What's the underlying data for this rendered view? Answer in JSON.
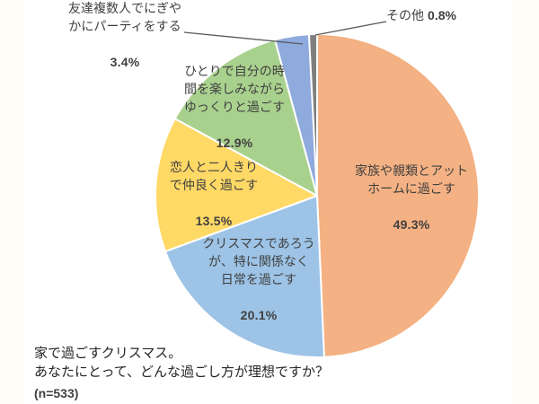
{
  "chart_data": {
    "type": "pie",
    "title": "家で過ごすクリスマス。あなたにとって、どんな過ごし方が理想ですか？",
    "n": 533,
    "start_angle_deg": 0,
    "direction": "clockwise",
    "legend_position": "none",
    "slices": [
      {
        "label": "家族や親類とアットホームに過ごす",
        "value": 49.3,
        "color": "#F4B183"
      },
      {
        "label": "クリスマスであろうが、特に関係なく日常を過ごす",
        "value": 20.1,
        "color": "#9DC3E6"
      },
      {
        "label": "恋人と二人きりで仲良く過ごす",
        "value": 13.5,
        "color": "#FFD966"
      },
      {
        "label": "ひとりで自分の時間を楽しみながらゆっくりと過ごす",
        "value": 12.9,
        "color": "#A9D18E"
      },
      {
        "label": "友達複数人でにぎやかにパーティをする",
        "value": 3.4,
        "color": "#8FAADC"
      },
      {
        "label": "その他",
        "value": 0.8,
        "color": "#7F7F7F"
      }
    ],
    "slice_border_color": "#FFFFFF",
    "label_text_color": "#404040",
    "leader_line_color": "#595959"
  },
  "labels": {
    "family": {
      "text": "家族や親類とアット\nホームに過ごす",
      "pct": "49.3%"
    },
    "ordinary": {
      "text": "クリスマスであろう\nが、特に関係なく\n日常を過ごす",
      "pct": "20.1%"
    },
    "lover": {
      "text": "恋人と二人きり\nで仲良く過ごす",
      "pct": "13.5%"
    },
    "alone": {
      "text": "ひとりで自分の時\n間を楽しみながら\nゆっくりと過ごす",
      "pct": "12.9%"
    },
    "friends": {
      "text": "友達複数人でにぎや\nかにパーティをする",
      "pct": "3.4%"
    },
    "other": {
      "text": "その他",
      "pct": "0.8%"
    }
  },
  "footer": {
    "line1": "家で過ごすクリスマス。",
    "line2": "あなたにとって、どんな過ごし方が理想ですか？",
    "n_label": "(n=533)"
  }
}
